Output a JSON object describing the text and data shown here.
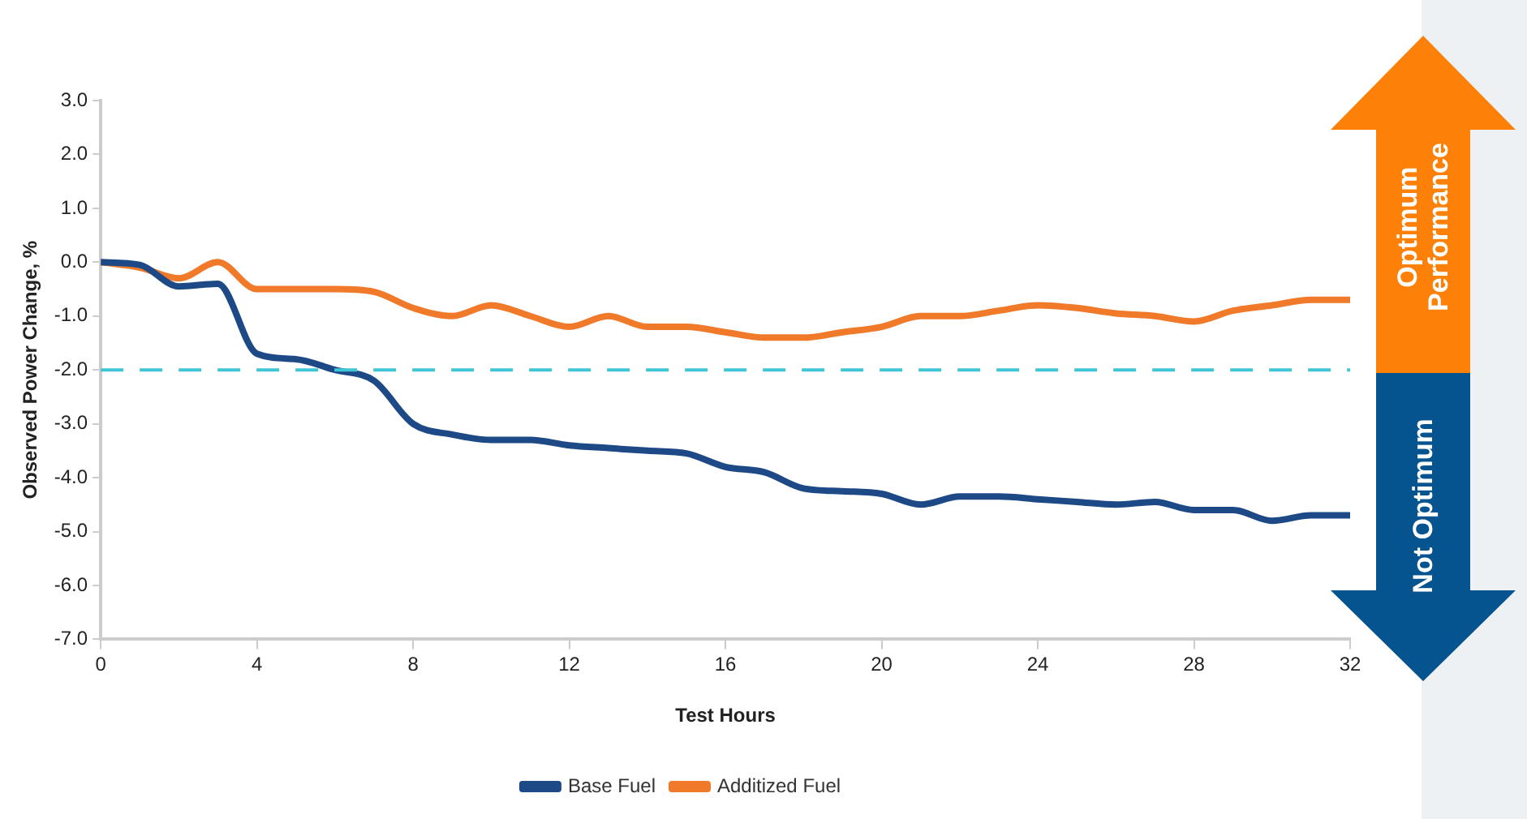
{
  "chart_data": {
    "type": "line",
    "xlabel": "Test Hours",
    "ylabel": "Observed Power Change, %",
    "x": [
      0,
      1,
      2,
      3,
      4,
      5,
      6,
      7,
      8,
      9,
      10,
      11,
      12,
      13,
      14,
      15,
      16,
      17,
      18,
      19,
      20,
      21,
      22,
      23,
      24,
      25,
      26,
      27,
      28,
      29,
      30,
      31,
      32
    ],
    "series": [
      {
        "name": "Base Fuel",
        "color": "#1d4a87",
        "values": [
          0,
          -0.05,
          -0.45,
          -0.4,
          -1.7,
          -1.8,
          -2.0,
          -2.2,
          -3.0,
          -3.2,
          -3.3,
          -3.3,
          -3.4,
          -3.45,
          -3.5,
          -3.55,
          -3.8,
          -3.9,
          -4.2,
          -4.25,
          -4.3,
          -4.5,
          -4.35,
          -4.35,
          -4.4,
          -4.45,
          -4.5,
          -4.45,
          -4.6,
          -4.6,
          -4.8,
          -4.7,
          -4.7
        ]
      },
      {
        "name": "Additized Fuel",
        "color": "#f07a2a",
        "values": [
          0,
          -0.1,
          -0.3,
          0.0,
          -0.5,
          -0.5,
          -0.5,
          -0.55,
          -0.85,
          -1.0,
          -0.8,
          -1.0,
          -1.2,
          -1.0,
          -1.2,
          -1.2,
          -1.3,
          -1.4,
          -1.4,
          -1.3,
          -1.2,
          -1.0,
          -1.0,
          -0.9,
          -0.8,
          -0.85,
          -0.95,
          -1.0,
          -1.1,
          -0.9,
          -0.8,
          -0.7,
          -0.7
        ]
      }
    ],
    "xlim": [
      0,
      32
    ],
    "xticks": [
      0,
      4,
      8,
      12,
      16,
      20,
      24,
      28,
      32
    ],
    "ylim": [
      -7,
      3
    ],
    "yticks": [
      {
        "value": 3,
        "label": "3.0"
      },
      {
        "value": 2,
        "label": "2.0"
      },
      {
        "value": 1,
        "label": "1.0"
      },
      {
        "value": 0,
        "label": "0.0"
      },
      {
        "value": -1,
        "label": "-1.0"
      },
      {
        "value": -2,
        "label": "-2.0"
      },
      {
        "value": -3,
        "label": "-3.0"
      },
      {
        "value": -4,
        "label": "-4.0"
      },
      {
        "value": -5,
        "label": "-5.0"
      },
      {
        "value": -6,
        "label": "-6.0"
      },
      {
        "value": -7,
        "label": "-7.0"
      }
    ],
    "ref_lines": [
      {
        "axis": "y",
        "value": -2,
        "color": "#3ec6d6",
        "line_style": "dashed"
      }
    ],
    "annotations": [
      "Optimum Performance",
      "Not Optimum"
    ],
    "grid": false,
    "legend": "bottom",
    "marker": "none",
    "line_style": "solid"
  }
}
